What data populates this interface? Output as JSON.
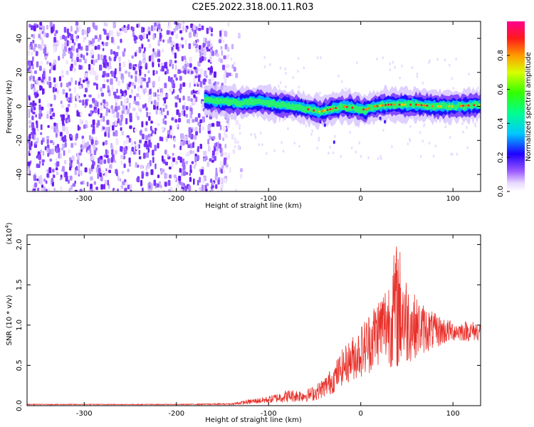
{
  "title": "C2E5.2022.318.00.11.R03",
  "chart_data": [
    {
      "type": "heatmap",
      "xlabel": "Height of straight line (km)",
      "ylabel": "Frequency (Hz)",
      "xlim": [
        -362,
        130
      ],
      "ylim": [
        -50,
        50
      ],
      "xticks": [
        -300,
        -200,
        -100,
        0,
        100
      ],
      "yticks": [
        -40,
        -20,
        0,
        20,
        40
      ],
      "colorbar": {
        "label": "Normalized spectral amplitude",
        "range": [
          0,
          1
        ],
        "ticks": [
          "0.0",
          "0.2",
          "0.4",
          "0.6",
          "0.8"
        ]
      },
      "noise_region_x": [
        -362,
        -145
      ],
      "signal_start_x": -170,
      "signal_trace_hz": [
        [
          -170,
          4
        ],
        [
          -150,
          3
        ],
        [
          -130,
          2
        ],
        [
          -110,
          3
        ],
        [
          -90,
          1
        ],
        [
          -70,
          0
        ],
        [
          -55,
          -2
        ],
        [
          -45,
          -3
        ],
        [
          -35,
          -2
        ],
        [
          -20,
          0
        ],
        [
          -5,
          -1
        ],
        [
          5,
          -2
        ],
        [
          15,
          0
        ],
        [
          30,
          1
        ],
        [
          45,
          1
        ],
        [
          60,
          1
        ],
        [
          80,
          0
        ],
        [
          100,
          0
        ],
        [
          130,
          1
        ]
      ]
    },
    {
      "type": "line",
      "xlabel": "Height of straight line (km)",
      "ylabel": "SNR (10 * v/v)",
      "yscale_label": "(x10",
      "yscale_exp": "4",
      "yscale_close": ")",
      "xlim": [
        -362,
        130
      ],
      "ylim": [
        0,
        2.12
      ],
      "xticks": [
        -300,
        -200,
        -100,
        0,
        100
      ],
      "yticks": [
        "0.0",
        "0.5",
        "1.0",
        "1.5",
        "2.0"
      ],
      "series": [
        {
          "color": "#e8302a",
          "envelope": [
            [
              -362,
              0.01,
              0.02
            ],
            [
              -200,
              0.01,
              0.02
            ],
            [
              -140,
              0.01,
              0.03
            ],
            [
              -120,
              0.02,
              0.08
            ],
            [
              -100,
              0.03,
              0.12
            ],
            [
              -80,
              0.04,
              0.2
            ],
            [
              -60,
              0.05,
              0.2
            ],
            [
              -50,
              0.06,
              0.25
            ],
            [
              -40,
              0.1,
              0.35
            ],
            [
              -30,
              0.15,
              0.5
            ],
            [
              -20,
              0.25,
              0.7
            ],
            [
              -10,
              0.3,
              0.85
            ],
            [
              0,
              0.35,
              1.0
            ],
            [
              10,
              0.4,
              1.2
            ],
            [
              20,
              0.5,
              1.4
            ],
            [
              30,
              0.5,
              1.6
            ],
            [
              40,
              0.4,
              2.1
            ],
            [
              50,
              0.5,
              1.6
            ],
            [
              60,
              0.6,
              1.35
            ],
            [
              70,
              0.65,
              1.25
            ],
            [
              80,
              0.7,
              1.15
            ],
            [
              90,
              0.75,
              1.1
            ],
            [
              100,
              0.8,
              1.05
            ],
            [
              110,
              0.8,
              1.05
            ],
            [
              130,
              0.8,
              1.05
            ]
          ]
        }
      ]
    }
  ]
}
